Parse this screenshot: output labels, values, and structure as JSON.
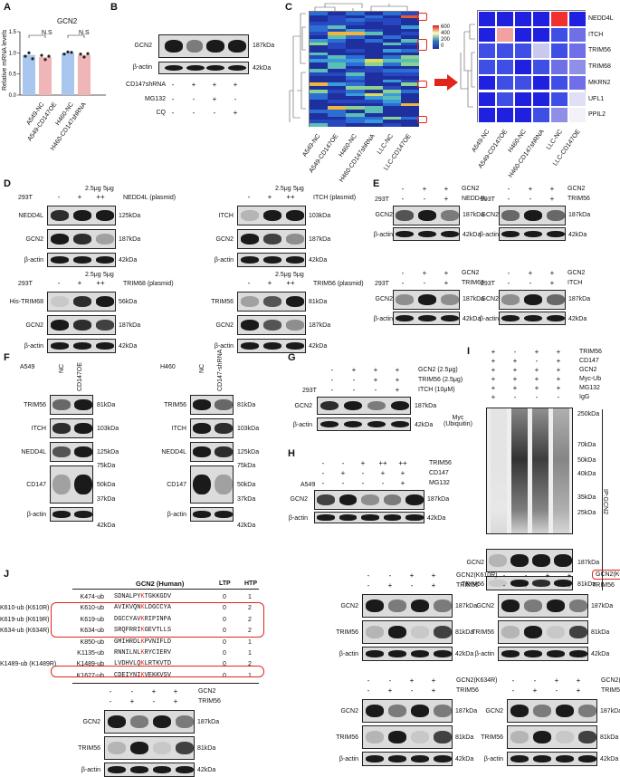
{
  "panels": {
    "A": {
      "letter": "A",
      "title": "GCN2",
      "ylabel": "Relative mRNA levels",
      "yticks": [
        "0.0",
        "0.5",
        "1.0",
        "1.5"
      ],
      "ns": [
        "N.S",
        "N.S"
      ],
      "categories": [
        "A549-NC",
        "A549-CD147OE",
        "H460-NC",
        "H460-CD147shRNA"
      ]
    },
    "B": {
      "letter": "B",
      "rows": [
        "GCN2",
        "β-actin"
      ],
      "sizes": [
        "187kDa",
        "42kDa"
      ],
      "conds": [
        "CD147shRNA",
        "MG132",
        "CQ"
      ],
      "marks": [
        [
          "-",
          "+",
          "+",
          "+"
        ],
        [
          "-",
          "-",
          "+",
          "-"
        ],
        [
          "-",
          "-",
          "-",
          "+"
        ]
      ]
    },
    "C": {
      "letter": "C",
      "scale": [
        "600",
        "400",
        "200",
        "0"
      ],
      "cols": [
        "A549-NC",
        "A549-CD147OE",
        "H460-NC",
        "H460-CD147shRNA",
        "LLC-NC",
        "LLC-CD147OE"
      ],
      "rows": [
        "NEDD4L",
        "ITCH",
        "TRIM56",
        "TRIM68",
        "MKRN2",
        "UFL1",
        "PPIL2"
      ]
    },
    "D": {
      "letter": "D",
      "b1": {
        "cond": "NEDD4L (plasmid)",
        "row0": "293T",
        "doses": [
          "2.5μg",
          "5μg"
        ],
        "m": [
          "-",
          "+",
          "++"
        ],
        "rows": [
          "NEDD4L",
          "GCN2",
          "β-actin"
        ],
        "sizes": [
          "125kDa",
          "187kDa",
          "42kDa"
        ]
      },
      "b2": {
        "cond": "ITCH (plasmid)",
        "doses": [
          "2.5μg",
          "5μg"
        ],
        "m": [
          "-",
          "+",
          "++"
        ],
        "rows": [
          "ITCH",
          "GCN2",
          "β-actin"
        ],
        "sizes": [
          "103kDa",
          "187kDa",
          "42kDa"
        ]
      },
      "b3": {
        "cond": "TRIM68 (plasmid)",
        "row0": "293T",
        "doses": [
          "2.5μg",
          "5μg"
        ],
        "m": [
          "-",
          "+",
          "++"
        ],
        "rows": [
          "His-TRIM68",
          "GCN2",
          "β-actin"
        ],
        "sizes": [
          "56kDa",
          "187kDa",
          "42kDa"
        ]
      },
      "b4": {
        "cond": "TRIM56 (plasmid)",
        "doses": [
          "2.5μg",
          "5μg"
        ],
        "m": [
          "-",
          "+",
          "++"
        ],
        "rows": [
          "TRIM56",
          "GCN2",
          "β-actin"
        ],
        "sizes": [
          "81kDa",
          "187kDa",
          "42kDa"
        ]
      }
    },
    "E": {
      "letter": "E",
      "cell": "293T",
      "rows": [
        "GCN2",
        "β-actin"
      ],
      "sizes": [
        "187kDa",
        "42kDa"
      ],
      "e": [
        {
          "second": "NEDD4L"
        },
        {
          "second": "TRIM56"
        },
        {
          "second": "TRIM68"
        },
        {
          "second": "ITCH"
        }
      ],
      "first": "GCN2",
      "m1": [
        "-",
        "+",
        "+"
      ],
      "m2": [
        "-",
        "-",
        "+"
      ]
    },
    "F": {
      "letter": "F",
      "left": {
        "cell": "A549",
        "cols": [
          "NC",
          "CD147OE"
        ]
      },
      "right": {
        "cell": "H460",
        "cols": [
          "NC",
          "CD147-shRNA"
        ]
      },
      "rows": [
        "TRIM56",
        "ITCH",
        "NEDD4L",
        "CD147",
        "β-actin"
      ],
      "sizes": [
        "81kDa",
        "103kDa",
        "125kDa",
        "75kDa",
        "50kDa",
        "37kDa",
        "42kDa"
      ]
    },
    "G": {
      "letter": "G",
      "conds": [
        "GCN2 (2.5μg)",
        "TRIM56 (2.5μg)",
        "ITCH (10μM)"
      ],
      "row0": "293T",
      "marks": [
        [
          "-",
          "+",
          "+",
          "+"
        ],
        [
          "-",
          "-",
          "+",
          "+"
        ],
        [
          "-",
          "-",
          "-",
          "+"
        ]
      ],
      "rows": [
        "GCN2",
        "β-actin"
      ],
      "sizes": [
        "187kDa",
        "42kDa"
      ]
    },
    "H": {
      "letter": "H",
      "cell": "A549",
      "conds": [
        "TRIM56",
        "CD147",
        "MG132"
      ],
      "marks": [
        [
          "-",
          "-",
          "+",
          "++",
          "++"
        ],
        [
          "-",
          "+",
          "-",
          "+",
          "+"
        ],
        [
          "-",
          "-",
          "-",
          "-",
          "+"
        ]
      ],
      "rows": [
        "GCN2",
        "β-actin"
      ],
      "sizes": [
        "187kDa",
        "42kDa"
      ]
    },
    "I": {
      "letter": "I",
      "conds": [
        "TRIM56",
        "CD147",
        "GCN2",
        "Myc-Ub",
        "MG132",
        "IgG"
      ],
      "marks": [
        [
          "+",
          "-",
          "+",
          "+"
        ],
        [
          "+",
          "+",
          "-",
          "+"
        ],
        [
          "+",
          "+",
          "+",
          "+"
        ],
        [
          "+",
          "+",
          "+",
          "+"
        ],
        [
          "+",
          "+",
          "+",
          "+"
        ],
        [
          "+",
          "-",
          "-",
          "-"
        ]
      ],
      "ylabel": "Myc\n(Ubiquitin)",
      "sizes": [
        "250kDa",
        "70kDa",
        "50kDa",
        "40kDa",
        "35kDa",
        "25kDa",
        "187kDa",
        "81kDa"
      ],
      "rows": [
        "GCN2",
        "TRIM56"
      ],
      "ip": "IP:GCN2"
    },
    "J": {
      "letter": "J",
      "header": "GCN2 (Human)",
      "col_ltp": "LTP",
      "col_htp": "HTP",
      "sites": [
        {
          "site": "K474-ub",
          "pre": "SDNALPY",
          "k": "K",
          "post": "TGKKGDV",
          "ltp": "0",
          "htp": "1",
          "label": ""
        },
        {
          "site": "K610-ub",
          "pre": "AVIKVQN",
          "k": "K",
          "post": "LDGCCYA",
          "ltp": "0",
          "htp": "2",
          "label": "K610-ub (K610R)"
        },
        {
          "site": "K619-ub",
          "pre": "DGCCYAV",
          "k": "K",
          "post": "RIPINPA",
          "ltp": "0",
          "htp": "2",
          "label": "K619-ub (K619R)"
        },
        {
          "site": "K634-ub",
          "pre": "SRQFRRI",
          "k": "K",
          "post": "GEVTLLS",
          "ltp": "0",
          "htp": "2",
          "label": "K634-ub (K634R)"
        },
        {
          "site": "K850-ub",
          "pre": "GMIHRDL",
          "k": "K",
          "post": "PVNIFLD",
          "ltp": "0",
          "htp": "1",
          "label": ""
        },
        {
          "site": "K1135-ub",
          "pre": "RNNILNL",
          "k": "K",
          "post": "RYCIERV",
          "ltp": "0",
          "htp": "1",
          "label": ""
        },
        {
          "site": "K1489-ub",
          "pre": "LVDHVLQ",
          "k": "K",
          "post": "LRTKVTD",
          "ltp": "0",
          "htp": "2",
          "label": "K1489-ub (K1489R)"
        },
        {
          "site": "K1627-ub",
          "pre": "CDEIYNI",
          "k": "K",
          "post": "VEKKVSV",
          "ltp": "0",
          "htp": "1",
          "label": ""
        }
      ],
      "blots": [
        {
          "a": "GCN2",
          "b": "TRIM56",
          "a_boxed": false,
          "rows": [
            "GCN2",
            "TRIM56",
            "β-actin"
          ],
          "sizes": [
            "187kDa",
            "81kDa",
            "42kDa"
          ]
        },
        {
          "a": "GCN2(K610R)",
          "b": "TRIM56",
          "rows": [
            "GCN2",
            "TRIM56",
            "β-actin"
          ],
          "sizes": [
            "187kDa",
            "81kDa",
            "42kDa"
          ]
        },
        {
          "a": "GCN2(K619R)",
          "b": "TRIM56",
          "rows": [
            "GCN2",
            "TRIM56",
            "β-actin"
          ],
          "sizes": [
            "187kDa",
            "81kDa",
            "42kDa"
          ]
        },
        {
          "a": "GCN2(K634R)",
          "b": "TRIM56",
          "rows": [
            "GCN2",
            "TRIM56",
            "β-actin"
          ],
          "sizes": [
            "187kDa",
            "81kDa",
            "42kDa"
          ]
        },
        {
          "a": "GCN2(K1489R)",
          "b": "TRIM56",
          "rows": [
            "GCN2",
            "TRIM56",
            "β-actin"
          ],
          "sizes": [
            "187kDa",
            "81kDa",
            "42kDa"
          ]
        }
      ],
      "m1": [
        "-",
        "-",
        "+",
        "+"
      ],
      "m2": [
        "-",
        "+",
        "-",
        "+"
      ]
    }
  },
  "chart_data": {
    "type": "bar",
    "title": "GCN2",
    "ylabel": "Relative mRNA levels",
    "ylim": [
      0,
      1.5
    ],
    "categories": [
      "A549-NC",
      "A549-CD147OE",
      "H460-NC",
      "H460-CD147shRNA"
    ],
    "values": [
      0.95,
      0.9,
      1.0,
      0.95
    ],
    "points": [
      [
        0.92,
        1.0,
        0.86
      ],
      [
        0.94,
        0.84,
        0.92
      ],
      [
        0.97,
        1.02,
        1.01
      ],
      [
        0.97,
        0.9,
        0.98
      ]
    ],
    "colors": [
      "#a9c6ee",
      "#efb5b7",
      "#a9c6ee",
      "#efb5b7"
    ]
  }
}
